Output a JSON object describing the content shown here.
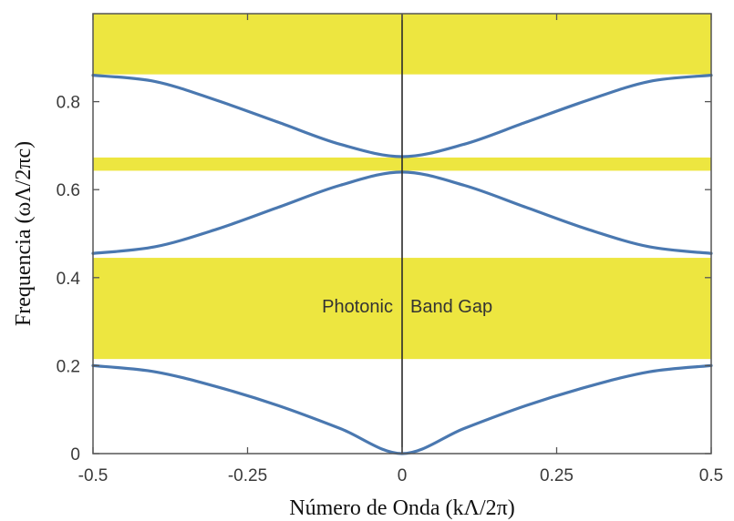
{
  "chart_data": {
    "type": "line",
    "xlabel": "Número de Onda (kΛ/2π)",
    "ylabel": "Frequencia (ωΛ/2πc)",
    "xlim": [
      -0.5,
      0.5
    ],
    "ylim": [
      0,
      1.0
    ],
    "x_ticks": [
      -0.5,
      -0.25,
      0,
      0.25,
      0.5
    ],
    "x_tick_labels": [
      "-0.5",
      "-0.25",
      "0",
      "0.25",
      "0.5"
    ],
    "y_ticks": [
      0,
      0.2,
      0.4,
      0.6,
      0.8
    ],
    "y_tick_labels": [
      "0",
      "0.2",
      "0.4",
      "0.6",
      "0.8"
    ],
    "grid": false,
    "series": [
      {
        "band": 1,
        "x": [
          -0.5,
          -0.4,
          -0.3,
          -0.2,
          -0.1,
          0,
          0.1,
          0.2,
          0.3,
          0.4,
          0.5
        ],
        "y": [
          0.2,
          0.186,
          0.152,
          0.109,
          0.057,
          0.0,
          0.057,
          0.109,
          0.152,
          0.186,
          0.2
        ]
      },
      {
        "band": 2,
        "x": [
          -0.5,
          -0.4,
          -0.3,
          -0.2,
          -0.1,
          0,
          0.1,
          0.2,
          0.3,
          0.4,
          0.5
        ],
        "y": [
          0.455,
          0.47,
          0.51,
          0.56,
          0.61,
          0.64,
          0.61,
          0.56,
          0.51,
          0.47,
          0.455
        ]
      },
      {
        "band": 3,
        "x": [
          -0.5,
          -0.4,
          -0.3,
          -0.2,
          -0.1,
          0,
          0.1,
          0.2,
          0.3,
          0.4,
          0.5
        ],
        "y": [
          0.86,
          0.846,
          0.803,
          0.753,
          0.703,
          0.675,
          0.703,
          0.753,
          0.803,
          0.846,
          0.86
        ]
      }
    ],
    "bands_shaded": [
      {
        "ymin": 0.215,
        "ymax": 0.445,
        "label_left": "Photonic",
        "label_right": "Band Gap",
        "label_y": 0.335
      },
      {
        "ymin": 0.643,
        "ymax": 0.673
      },
      {
        "ymin": 0.862,
        "ymax": 1.0
      }
    ],
    "colors": {
      "curve": "#4a78b0",
      "gap_fill": "#ede640",
      "axis": "#555555",
      "center_line": "#2a2a2a"
    }
  }
}
